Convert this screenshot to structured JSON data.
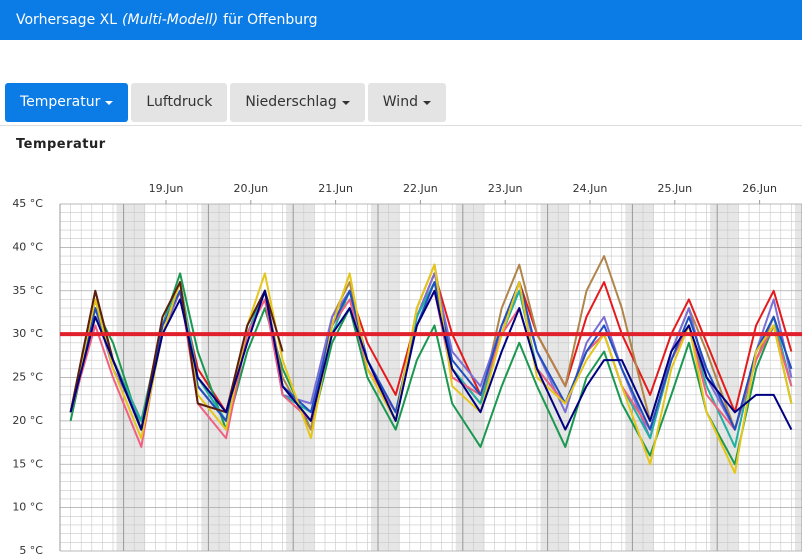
{
  "header": {
    "title_prefix": "Vorhersage XL",
    "title_italic": "(Multi-Modell)",
    "title_suffix": "für Offenburg"
  },
  "tabs": [
    "Temperatur",
    "Luftdruck",
    "Niederschlag",
    "Wind"
  ],
  "chart_data": {
    "type": "line",
    "title": "Temperatur",
    "x": [
      9,
      16,
      21,
      29,
      35,
      40,
      45,
      53,
      59,
      64,
      69,
      77,
      83,
      88,
      93,
      101,
      107,
      112,
      117,
      125,
      131,
      136,
      141,
      149,
      155,
      160,
      165,
      173,
      179,
      184,
      189,
      197,
      203,
      208,
      213
    ],
    "xlim": [
      6,
      216
    ],
    "xticks": [
      {
        "value": 36,
        "label": "19.Jun"
      },
      {
        "value": 60,
        "label": "20.Jun"
      },
      {
        "value": 84,
        "label": "21.Jun"
      },
      {
        "value": 108,
        "label": "22.Jun"
      },
      {
        "value": 132,
        "label": "23.Jun"
      },
      {
        "value": 156,
        "label": "24.Jun"
      },
      {
        "value": 180,
        "label": "25.Jun"
      },
      {
        "value": 204,
        "label": "26.Jun"
      }
    ],
    "ylim": [
      5,
      45
    ],
    "yticks": [
      {
        "value": 5,
        "label": "5 °C"
      },
      {
        "value": 10,
        "label": "10 °C"
      },
      {
        "value": 15,
        "label": "15 °C"
      },
      {
        "value": 20,
        "label": "20 °C"
      },
      {
        "value": 25,
        "label": "25 °C"
      },
      {
        "value": 30,
        "label": "30 °C"
      },
      {
        "value": 35,
        "label": "35 °C"
      },
      {
        "value": 40,
        "label": "40 °C"
      },
      {
        "value": 45,
        "label": "45 °C"
      }
    ],
    "grid": true,
    "reference_line": {
      "value": 30,
      "color": "#e0202a"
    },
    "series": [
      {
        "color": "#e41a1c",
        "values": [
          21,
          34,
          27,
          20,
          30,
          35,
          26,
          21,
          30,
          35,
          24,
          20,
          31,
          35,
          29,
          23,
          32,
          37,
          30,
          23,
          30,
          36,
          30,
          24,
          32,
          36,
          30,
          23,
          30,
          34,
          29,
          21,
          31,
          35,
          28
        ]
      },
      {
        "color": "#1a9850",
        "values": [
          20,
          33,
          29,
          19,
          31,
          37,
          28,
          19,
          28,
          33,
          26,
          19,
          29,
          33,
          25,
          19,
          27,
          31,
          22,
          17,
          24,
          29,
          24,
          17,
          25,
          28,
          22,
          16,
          23,
          29,
          21,
          15,
          26,
          31,
          22
        ]
      },
      {
        "color": "#b0844a",
        "values": [
          21,
          35,
          27,
          20,
          31,
          36,
          24,
          20,
          30,
          35,
          25,
          19,
          32,
          36,
          26,
          20,
          33,
          38,
          26,
          22,
          33,
          38,
          30,
          24,
          35,
          39,
          33,
          20,
          28,
          33,
          28,
          19,
          27,
          32,
          26
        ]
      },
      {
        "color": "#7b6fd6",
        "values": [
          21,
          33,
          26,
          20,
          30,
          35,
          24,
          20,
          30,
          35,
          23,
          22,
          32,
          35,
          27,
          21,
          32,
          37,
          28,
          24,
          31,
          35,
          28,
          21,
          29,
          32,
          26,
          18,
          28,
          33,
          25,
          19,
          28,
          34,
          25
        ]
      },
      {
        "color": "#20b0a0",
        "values": [
          21,
          34,
          27,
          20,
          31,
          36,
          25,
          20,
          30,
          35,
          23,
          21,
          30,
          35,
          26,
          21,
          32,
          36,
          26,
          22,
          30,
          35,
          26,
          22,
          28,
          30,
          24,
          18,
          27,
          31,
          24,
          17,
          28,
          32,
          24
        ]
      },
      {
        "color": "#f06080",
        "values": [
          21,
          31,
          25,
          17,
          31,
          35,
          22,
          18,
          30,
          34,
          23,
          20,
          31,
          34,
          26,
          21,
          31,
          35,
          25,
          23,
          30,
          33,
          26,
          22,
          28,
          30,
          24,
          19,
          27,
          31,
          23,
          19,
          27,
          31,
          24
        ]
      },
      {
        "color": "#2050c0",
        "values": [
          21,
          33,
          27,
          19,
          31,
          35,
          24,
          20,
          31,
          35,
          24,
          21,
          31,
          35,
          27,
          21,
          31,
          36,
          27,
          23,
          31,
          36,
          28,
          22,
          28,
          31,
          26,
          19,
          27,
          32,
          26,
          19,
          28,
          32,
          26
        ]
      },
      {
        "color": "#e6c619",
        "values": [
          21,
          34,
          26,
          18,
          30,
          36,
          23,
          19,
          31,
          37,
          27,
          18,
          31,
          37,
          26,
          20,
          33,
          38,
          24,
          21,
          30,
          36,
          25,
          22,
          27,
          30,
          24,
          15,
          26,
          31,
          21,
          14,
          28,
          31,
          22
        ]
      },
      {
        "color": "#5a1e10",
        "values": [
          21,
          35,
          27,
          19,
          32,
          36,
          22,
          21,
          31,
          35,
          28,
          null,
          null,
          null,
          null,
          null,
          null,
          null,
          null,
          null,
          null,
          null,
          null,
          null,
          null,
          null,
          null,
          null,
          null,
          null,
          null,
          null,
          null,
          null,
          null
        ]
      },
      {
        "color": "#000080",
        "values": [
          21,
          32,
          27,
          19,
          30,
          34,
          25,
          21,
          29,
          35,
          24,
          20,
          30,
          33,
          27,
          20,
          31,
          35,
          26,
          21,
          28,
          33,
          26,
          19,
          24,
          27,
          27,
          20,
          28,
          31,
          25,
          21,
          23,
          23,
          19
        ]
      }
    ]
  }
}
